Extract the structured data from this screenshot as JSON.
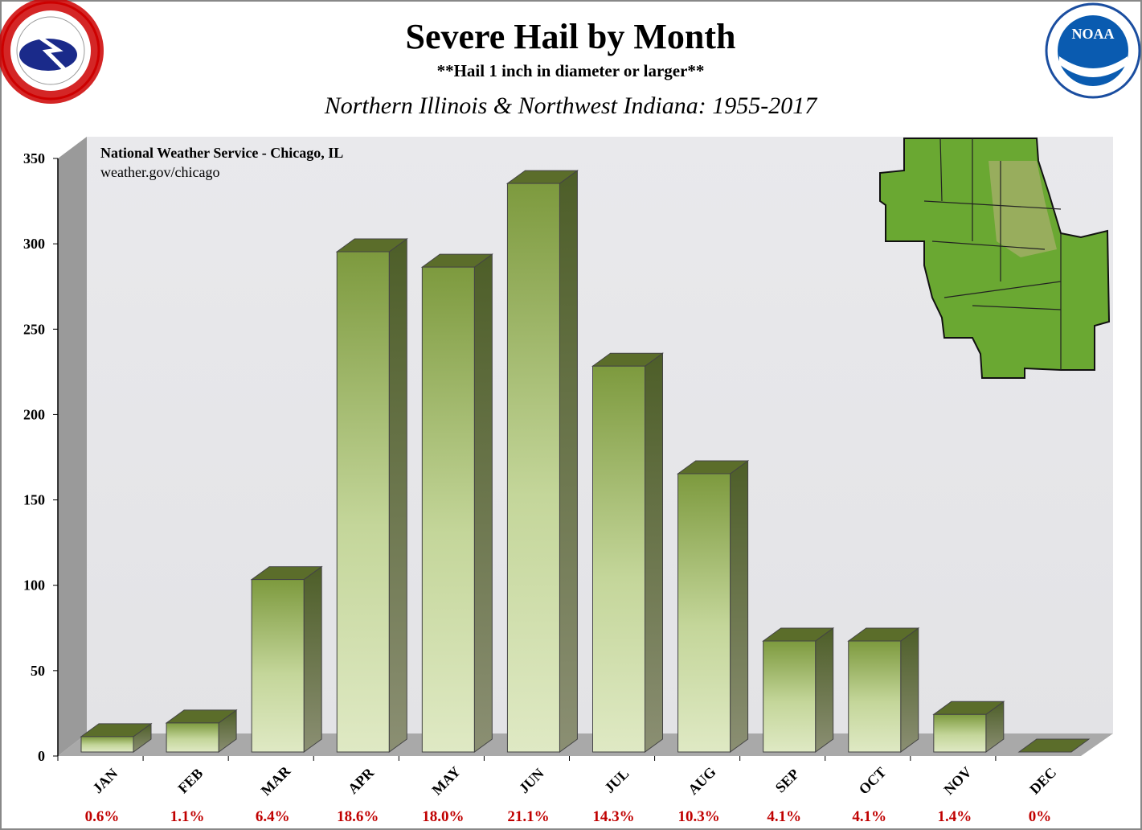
{
  "chart_data": {
    "type": "bar3d",
    "title": "Severe Hail by Month",
    "subtitle": "**Hail 1 inch in diameter or larger**",
    "region": "Northern Illinois & Northwest Indiana:  1955-2017",
    "source": "National Weather Service - Chicago, IL",
    "website": "weather.gov/chicago",
    "logos": [
      "NOAA"
    ],
    "categories": [
      "JAN",
      "FEB",
      "MAR",
      "APR",
      "MAY",
      "JUN",
      "JUL",
      "AUG",
      "SEP",
      "OCT",
      "NOV",
      "DEC"
    ],
    "values": [
      9,
      17,
      101,
      293,
      284,
      333,
      226,
      163,
      65,
      65,
      22,
      0
    ],
    "percent_labels": [
      "0.6%",
      "1.1%",
      "6.4%",
      "18.6%",
      "18.0%",
      "21.1%",
      "14.3%",
      "10.3%",
      "4.1%",
      "4.1%",
      "1.4%",
      "0%"
    ],
    "color": "#7d9a3e",
    "ylim": [
      0,
      350
    ],
    "yticks": [
      0,
      50,
      100,
      150,
      200,
      250,
      300,
      350
    ]
  }
}
